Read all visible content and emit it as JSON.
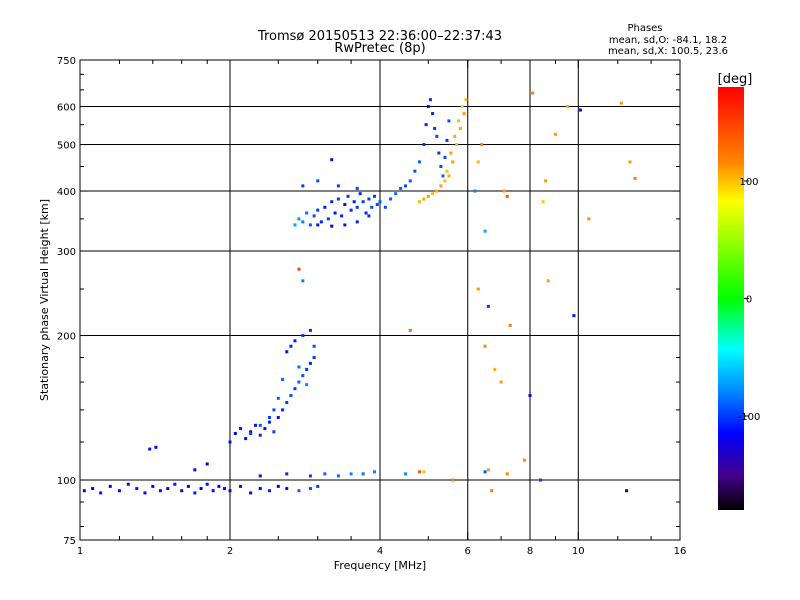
{
  "chart_data": {
    "type": "scatter",
    "title": "Tromsø 20150513 22:36:00–22:37:43",
    "subtitle": "RwPretec (8p)",
    "stats": {
      "heading": "Phases",
      "line_o": "mean, sd,O: -84.1, 18.2",
      "line_x": "mean, sd,X: 100.5, 23.6"
    },
    "xlabel": "Frequency [MHz]",
    "ylabel": "Stationary phase Virtual Height [km]",
    "x_scale": "log",
    "y_scale": "log",
    "xlim": [
      1,
      16
    ],
    "ylim": [
      75,
      750
    ],
    "x_ticks": [
      1,
      2,
      4,
      6,
      8,
      10,
      16
    ],
    "x_tick_labels": [
      "1",
      "2",
      "4",
      "6",
      "8",
      "10",
      "16"
    ],
    "y_ticks": [
      75,
      100,
      200,
      300,
      400,
      500,
      600,
      750
    ],
    "y_tick_labels": [
      "75",
      "100",
      "200",
      "300",
      "400",
      "500",
      "600",
      "750"
    ],
    "x_gridlines": [
      2,
      4,
      6,
      8,
      10
    ],
    "y_gridlines": [
      100,
      200,
      300,
      400,
      500,
      600
    ],
    "grid": true,
    "colorbar": {
      "label": "[deg]",
      "range": [
        -180,
        180
      ],
      "ticks": [
        100,
        0,
        -100
      ],
      "tick_labels": [
        "100",
        "0",
        "-100"
      ],
      "colors": [
        "#ff0000",
        "#ff8800",
        "#ffff00",
        "#00ff00",
        "#00ffff",
        "#0088ff",
        "#0000ff",
        "#440088",
        "#000000"
      ]
    },
    "series": [
      {
        "values": [
          [
            1.02,
            95,
            -115
          ],
          [
            1.06,
            96,
            -120
          ],
          [
            1.1,
            94,
            -110
          ],
          [
            1.15,
            97,
            -118
          ],
          [
            1.2,
            95,
            -112
          ],
          [
            1.25,
            98,
            -120
          ],
          [
            1.3,
            96,
            -108
          ],
          [
            1.35,
            94,
            -115
          ],
          [
            1.4,
            97,
            -120
          ],
          [
            1.45,
            95,
            -112
          ],
          [
            1.5,
            96,
            -118
          ],
          [
            1.55,
            98,
            -110
          ],
          [
            1.6,
            95,
            -120
          ],
          [
            1.65,
            97,
            -115
          ],
          [
            1.7,
            94,
            -108
          ],
          [
            1.75,
            96,
            -118
          ],
          [
            1.8,
            98,
            -112
          ],
          [
            1.85,
            95,
            -120
          ],
          [
            1.9,
            97,
            -115
          ],
          [
            1.95,
            96,
            -110
          ],
          [
            2.0,
            95,
            -118
          ],
          [
            2.1,
            97,
            -112
          ],
          [
            2.2,
            94,
            -120
          ],
          [
            2.3,
            96,
            -115
          ],
          [
            2.4,
            95,
            -108
          ],
          [
            2.5,
            97,
            -118
          ],
          [
            2.6,
            96,
            -112
          ],
          [
            2.75,
            95,
            -90
          ],
          [
            2.9,
            96,
            -95
          ],
          [
            3.0,
            97,
            -100
          ],
          [
            2.3,
            102,
            -110
          ],
          [
            2.6,
            103,
            -105
          ],
          [
            2.9,
            102,
            -100
          ],
          [
            3.1,
            103,
            -90
          ],
          [
            3.3,
            102,
            -85
          ],
          [
            3.5,
            103,
            -80
          ],
          [
            3.7,
            103,
            -85
          ],
          [
            3.9,
            104,
            -80
          ],
          [
            4.5,
            103,
            -75
          ],
          [
            4.9,
            104,
            100
          ],
          [
            1.38,
            116,
            -110
          ],
          [
            1.42,
            117,
            -115
          ],
          [
            1.7,
            105,
            -120
          ],
          [
            1.8,
            108,
            -115
          ],
          [
            2.0,
            120,
            -110
          ],
          [
            2.05,
            125,
            -115
          ],
          [
            2.1,
            128,
            -108
          ],
          [
            2.15,
            122,
            -112
          ],
          [
            2.2,
            126,
            -118
          ],
          [
            2.25,
            130,
            -110
          ],
          [
            2.3,
            124,
            -105
          ],
          [
            2.35,
            128,
            -112
          ],
          [
            2.4,
            132,
            -108
          ],
          [
            2.45,
            126,
            -100
          ],
          [
            2.5,
            135,
            -110
          ],
          [
            2.55,
            140,
            -105
          ],
          [
            2.6,
            145,
            -100
          ],
          [
            2.65,
            150,
            -95
          ],
          [
            2.7,
            155,
            -100
          ],
          [
            2.75,
            160,
            -90
          ],
          [
            2.8,
            165,
            -95
          ],
          [
            2.85,
            170,
            -100
          ],
          [
            2.9,
            175,
            -105
          ],
          [
            2.95,
            180,
            -100
          ],
          [
            2.6,
            185,
            -110
          ],
          [
            2.65,
            190,
            -105
          ],
          [
            2.7,
            195,
            -108
          ],
          [
            2.8,
            200,
            -100
          ],
          [
            2.9,
            205,
            -105
          ],
          [
            2.5,
            148,
            -90
          ],
          [
            2.45,
            140,
            -95
          ],
          [
            2.4,
            135,
            -100
          ],
          [
            2.3,
            130,
            -92
          ],
          [
            2.2,
            125,
            -98
          ],
          [
            2.75,
            172,
            -85
          ],
          [
            2.85,
            158,
            -80
          ],
          [
            2.95,
            190,
            -95
          ],
          [
            2.55,
            162,
            -88
          ],
          [
            2.7,
            340,
            -70
          ],
          [
            2.75,
            350,
            -75
          ],
          [
            2.8,
            345,
            -80
          ],
          [
            2.85,
            360,
            -85
          ],
          [
            2.9,
            340,
            -90
          ],
          [
            2.95,
            355,
            -95
          ],
          [
            3.0,
            365,
            -100
          ],
          [
            3.05,
            345,
            -105
          ],
          [
            3.1,
            370,
            -110
          ],
          [
            3.15,
            350,
            -100
          ],
          [
            3.2,
            380,
            -105
          ],
          [
            3.25,
            360,
            -110
          ],
          [
            3.3,
            385,
            -100
          ],
          [
            3.35,
            355,
            -105
          ],
          [
            3.4,
            375,
            -110
          ],
          [
            3.45,
            390,
            -100
          ],
          [
            3.5,
            365,
            -105
          ],
          [
            3.55,
            380,
            -110
          ],
          [
            3.6,
            370,
            -100
          ],
          [
            3.65,
            395,
            -105
          ],
          [
            3.7,
            380,
            -100
          ],
          [
            3.75,
            360,
            -105
          ],
          [
            3.8,
            385,
            -100
          ],
          [
            3.85,
            370,
            -95
          ],
          [
            3.9,
            390,
            -100
          ],
          [
            3.95,
            375,
            -95
          ],
          [
            4.0,
            380,
            -90
          ],
          [
            4.1,
            370,
            -95
          ],
          [
            4.2,
            385,
            -90
          ],
          [
            4.3,
            395,
            -85
          ],
          [
            4.4,
            405,
            -90
          ],
          [
            4.5,
            410,
            -95
          ],
          [
            4.6,
            420,
            -90
          ],
          [
            4.7,
            440,
            -95
          ],
          [
            4.8,
            460,
            -90
          ],
          [
            4.9,
            500,
            -100
          ],
          [
            4.95,
            550,
            -105
          ],
          [
            5.0,
            600,
            -110
          ],
          [
            5.05,
            620,
            -100
          ],
          [
            5.1,
            580,
            -105
          ],
          [
            5.15,
            540,
            -100
          ],
          [
            5.2,
            520,
            -95
          ],
          [
            5.25,
            480,
            -100
          ],
          [
            5.3,
            450,
            -95
          ],
          [
            5.35,
            430,
            -90
          ],
          [
            5.4,
            470,
            -95
          ],
          [
            5.45,
            510,
            -100
          ],
          [
            5.5,
            560,
            -95
          ],
          [
            3.0,
            340,
            -110
          ],
          [
            3.2,
            338,
            -115
          ],
          [
            3.4,
            340,
            -110
          ],
          [
            3.6,
            345,
            -108
          ],
          [
            3.8,
            355,
            -105
          ],
          [
            2.8,
            410,
            -100
          ],
          [
            3.0,
            420,
            -95
          ],
          [
            3.3,
            410,
            -100
          ],
          [
            3.6,
            405,
            -95
          ],
          [
            4.8,
            380,
            100
          ],
          [
            4.9,
            385,
            105
          ],
          [
            5.0,
            390,
            110
          ],
          [
            5.1,
            395,
            100
          ],
          [
            5.2,
            400,
            105
          ],
          [
            5.3,
            410,
            110
          ],
          [
            5.4,
            420,
            100
          ],
          [
            5.5,
            430,
            105
          ],
          [
            5.6,
            460,
            110
          ],
          [
            5.7,
            500,
            100
          ],
          [
            5.8,
            540,
            105
          ],
          [
            5.9,
            580,
            110
          ],
          [
            5.95,
            620,
            100
          ],
          [
            5.85,
            600,
            95
          ],
          [
            5.75,
            560,
            100
          ],
          [
            5.65,
            520,
            105
          ],
          [
            5.55,
            480,
            110
          ],
          [
            5.45,
            440,
            100
          ],
          [
            6.3,
            250,
            110
          ],
          [
            6.5,
            190,
            115
          ],
          [
            6.6,
            230,
            -100
          ],
          [
            6.8,
            170,
            105
          ],
          [
            7.0,
            160,
            110
          ],
          [
            7.1,
            400,
            110
          ],
          [
            7.3,
            210,
            120
          ],
          [
            7.8,
            110,
            115
          ],
          [
            8.0,
            150,
            -130
          ],
          [
            8.4,
            100,
            -100
          ],
          [
            8.5,
            380,
            100
          ],
          [
            8.6,
            420,
            110
          ],
          [
            8.7,
            260,
            110
          ],
          [
            9.0,
            525,
            110
          ],
          [
            9.5,
            600,
            105
          ],
          [
            9.8,
            220,
            -110
          ],
          [
            10.5,
            350,
            115
          ],
          [
            12.5,
            95,
            -160
          ],
          [
            12.7,
            460,
            110
          ],
          [
            13.0,
            425,
            120
          ],
          [
            6.6,
            105,
            110
          ],
          [
            6.5,
            104,
            -90
          ],
          [
            6.7,
            95,
            120
          ],
          [
            7.2,
            103,
            115
          ],
          [
            5.6,
            100,
            120
          ],
          [
            4.8,
            104,
            140
          ],
          [
            2.8,
            260,
            -80
          ],
          [
            2.75,
            275,
            150
          ],
          [
            3.2,
            465,
            -140
          ],
          [
            4.6,
            205,
            130
          ],
          [
            6.2,
            400,
            -80
          ],
          [
            6.4,
            500,
            120
          ],
          [
            6.3,
            460,
            100
          ],
          [
            6.5,
            330,
            -70
          ],
          [
            7.2,
            390,
            140
          ],
          [
            8.1,
            640,
            120
          ],
          [
            12.2,
            610,
            110
          ],
          [
            10.1,
            590,
            -110
          ]
        ]
      }
    ]
  }
}
